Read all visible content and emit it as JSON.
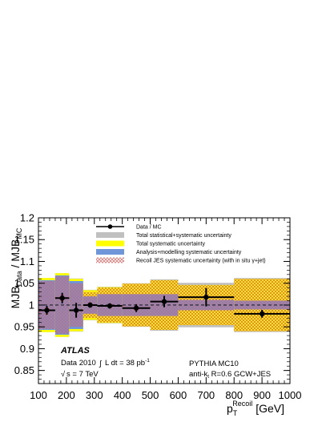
{
  "chart_data": {
    "type": "scatter",
    "xlim": [
      100,
      1000
    ],
    "ylim": [
      0.82,
      1.2
    ],
    "x_ticks": [
      "100",
      "200",
      "300",
      "400",
      "500",
      "600",
      "700",
      "800",
      "900",
      "1000"
    ],
    "y_ticks": [
      "0.85",
      "0.9",
      "0.95",
      "1",
      "1.05",
      "1.1",
      "1.15",
      "1.2"
    ],
    "x_tick_values": [
      100,
      200,
      300,
      400,
      500,
      600,
      700,
      800,
      900,
      1000
    ],
    "y_tick_values": [
      0.85,
      0.9,
      0.95,
      1.0,
      1.05,
      1.1,
      1.15,
      1.2
    ],
    "y_label_parts": {
      "main1": "MJB",
      "sub1": "Data",
      "sep": " / MJB",
      "sub2": "MC"
    },
    "x_label_parts": {
      "p": "p",
      "sub": "T",
      "sup": "Recoil",
      "unit": " [GeV]"
    },
    "bins": [
      {
        "lo": 100,
        "hi": 160,
        "y": 0.988,
        "stat": 0.01,
        "tot_statsys": 0.062,
        "tot_sys": 0.062,
        "analysis": 0.057,
        "recoil": 0.055
      },
      {
        "lo": 160,
        "hi": 210,
        "y": 1.016,
        "stat": 0.012,
        "tot_statsys": 0.073,
        "tot_sys": 0.073,
        "analysis": 0.068,
        "recoil": 0.066
      },
      {
        "lo": 210,
        "hi": 260,
        "y": 0.988,
        "stat": 0.017,
        "tot_statsys": 0.061,
        "tot_sys": 0.06,
        "analysis": 0.055,
        "recoil": 0.05
      },
      {
        "lo": 260,
        "hi": 310,
        "y": 1.0,
        "stat": 0.006,
        "tot_statsys": 0.035,
        "tot_sys": 0.034,
        "analysis": 0.02,
        "recoil": 0.03
      },
      {
        "lo": 310,
        "hi": 400,
        "y": 0.998,
        "stat": 0.006,
        "tot_statsys": 0.042,
        "tot_sys": 0.041,
        "analysis": 0.025,
        "recoil": 0.04
      },
      {
        "lo": 400,
        "hi": 500,
        "y": 0.993,
        "stat": 0.009,
        "tot_statsys": 0.05,
        "tot_sys": 0.049,
        "analysis": 0.025,
        "recoil": 0.049
      },
      {
        "lo": 500,
        "hi": 600,
        "y": 1.008,
        "stat": 0.013,
        "tot_statsys": 0.059,
        "tot_sys": 0.057,
        "analysis": 0.025,
        "recoil": 0.057
      },
      {
        "lo": 600,
        "hi": 800,
        "y": 1.018,
        "stat": 0.021,
        "tot_statsys": 0.051,
        "tot_sys": 0.046,
        "analysis": 0.012,
        "recoil": 0.046
      },
      {
        "lo": 800,
        "hi": 1000,
        "y": 0.98,
        "stat": 0.009,
        "tot_statsys": 0.062,
        "tot_sys": 0.06,
        "analysis": 0.01,
        "recoil": 0.06
      }
    ],
    "reference_line": 1.0,
    "legend": [
      {
        "label": "Data / MC",
        "kind": "marker"
      },
      {
        "label": "Total statistical+systematic uncertainty",
        "kind": "grey"
      },
      {
        "label": "Total systematic uncertainty",
        "kind": "yellow"
      },
      {
        "label": "Analysis+modelling systematic uncertainty",
        "kind": "blue"
      },
      {
        "label": "Recoil JES systematic uncertainty (with in situ  γ+jet)",
        "kind": "hatch"
      }
    ],
    "legend_placement": "top-center",
    "colors": {
      "grey": "#c0c0c0",
      "yellow": "#ffff00",
      "blue": "#6f96d8",
      "hatch": "#e06060",
      "marker": "#000000"
    },
    "annotations": {
      "atlas": "ATLAS",
      "data_text": "Data 2010",
      "lumi_text": "L dt = 38 pb",
      "lumi_exp": "-1",
      "sqrts_text": "s = 7 TeV",
      "mc_text": "PYTHIA MC10",
      "algo_text_pre": "anti-k",
      "algo_sub": "t",
      "algo_text_post": " R=0.6  GCW+JES"
    }
  }
}
